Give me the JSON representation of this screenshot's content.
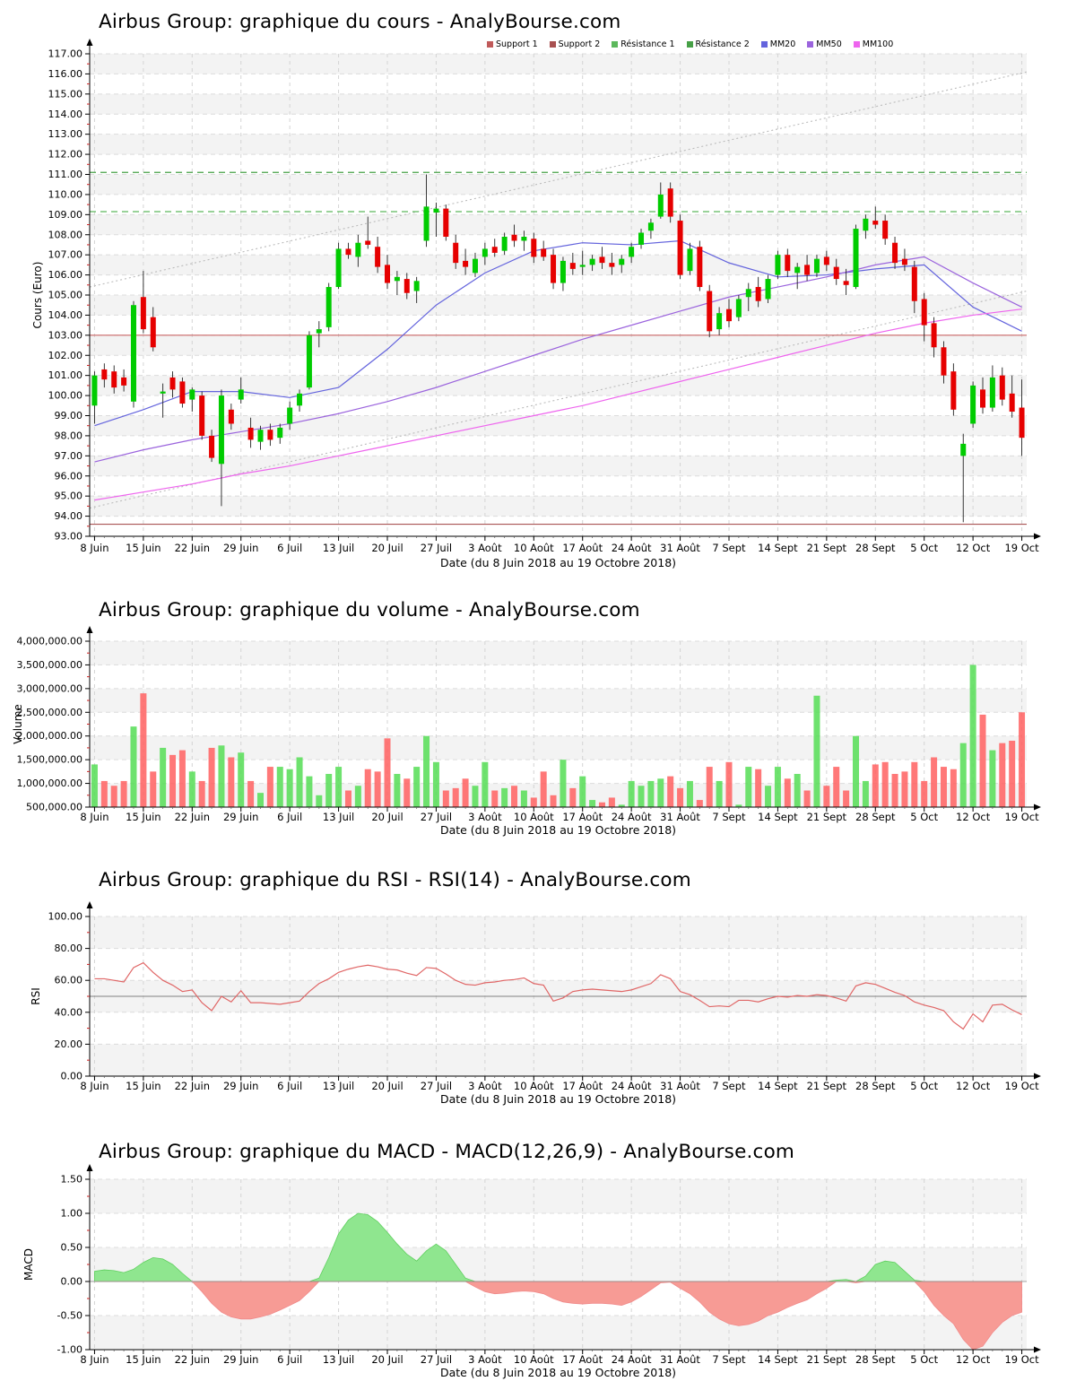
{
  "x_axis": {
    "tick_labels": [
      "8 Juin",
      "15 Juin",
      "22 Juin",
      "29 Juin",
      "6 Juil",
      "13 Juil",
      "20 Juil",
      "27 Juil",
      "3 Août",
      "10 Août",
      "17 Août",
      "24 Août",
      "31 Août",
      "7 Sept",
      "14 Sept",
      "21 Sept",
      "28 Sept",
      "5 Oct",
      "12 Oct",
      "19 Oct"
    ],
    "axis_label": "Date (du 8 Juin 2018 au 19 Octobre 2018)",
    "days_count": 96,
    "tick_step_days": 5
  },
  "chart_data": [
    {
      "type": "candlestick",
      "title": "Airbus Group: graphique du cours - AnalyBourse.com",
      "y_axis_label": "Cours (Euro)",
      "ylim": [
        93,
        117
      ],
      "y_major": 1,
      "y_minor": 0.5,
      "y_format": "fixed2",
      "up_color": "#00cc00",
      "down_color": "#e60000",
      "legend": [
        {
          "label": "Support 1",
          "color": "#c05a5a"
        },
        {
          "label": "Support 2",
          "color": "#a85050"
        },
        {
          "label": "Résistance 1",
          "color": "#5cb85c"
        },
        {
          "label": "Résistance 2",
          "color": "#46a046"
        },
        {
          "label": "MM20",
          "color": "#6464dd"
        },
        {
          "label": "MM50",
          "color": "#9b64dd"
        },
        {
          "label": "MM100",
          "color": "#ee64ee"
        }
      ],
      "support_lines": [
        {
          "label": "Support 1",
          "value": 103.0,
          "color": "#cc6666"
        },
        {
          "label": "Support 2",
          "value": 93.6,
          "color": "#aa5555"
        }
      ],
      "resistance_lines": [
        {
          "label": "Résistance 1",
          "value": 109.15,
          "color": "#5cb85c"
        },
        {
          "label": "Résistance 2",
          "value": 111.1,
          "color": "#46a046"
        }
      ],
      "trend_channel": [
        {
          "start": 94.4,
          "end": 105.2
        },
        {
          "start": 105.4,
          "end": 116.1
        }
      ],
      "moving_averages": [
        {
          "label": "MM20",
          "color": "#6464dd",
          "sample_step": 5,
          "values": [
            98.5,
            99.3,
            100.2,
            100.2,
            99.9,
            100.4,
            102.3,
            104.5,
            106.1,
            107.2,
            107.6,
            107.5,
            107.7,
            106.6,
            105.9,
            106.0,
            106.3,
            106.5,
            104.4,
            103.2
          ]
        },
        {
          "label": "MM50",
          "color": "#9b64dd",
          "sample_step": 5,
          "values": [
            96.7,
            97.3,
            97.8,
            98.2,
            98.6,
            99.1,
            99.7,
            100.4,
            101.2,
            102.0,
            102.8,
            103.5,
            104.2,
            104.9,
            105.4,
            105.9,
            106.5,
            106.9,
            105.6,
            104.4
          ]
        },
        {
          "label": "MM100",
          "color": "#ee64ee",
          "sample_step": 5,
          "values": [
            94.8,
            95.2,
            95.6,
            96.1,
            96.5,
            97.0,
            97.5,
            98.0,
            98.5,
            99.0,
            99.5,
            100.1,
            100.7,
            101.3,
            101.9,
            102.5,
            103.1,
            103.6,
            104.0,
            104.3
          ]
        }
      ],
      "candles_ohlc": [
        [
          99.5,
          101.2,
          98.6,
          101.0
        ],
        [
          101.3,
          101.6,
          100.4,
          100.8
        ],
        [
          101.2,
          101.5,
          100.1,
          100.4
        ],
        [
          100.9,
          101.3,
          100.2,
          100.5
        ],
        [
          99.7,
          104.7,
          99.4,
          104.5
        ],
        [
          104.9,
          106.2,
          103.1,
          103.3
        ],
        [
          103.9,
          104.4,
          102.2,
          102.4
        ],
        [
          100.1,
          100.6,
          98.9,
          100.2
        ],
        [
          100.9,
          101.2,
          99.9,
          100.3
        ],
        [
          100.7,
          100.9,
          99.4,
          99.6
        ],
        [
          99.8,
          100.4,
          99.2,
          100.3
        ],
        [
          100.0,
          100.2,
          97.8,
          98.0
        ],
        [
          98.0,
          98.3,
          96.7,
          96.9
        ],
        [
          96.6,
          100.3,
          94.5,
          100.0
        ],
        [
          99.3,
          99.6,
          98.3,
          98.6
        ],
        [
          99.8,
          100.9,
          99.6,
          100.3
        ],
        [
          98.4,
          98.9,
          97.4,
          97.8
        ],
        [
          97.7,
          98.5,
          97.3,
          98.3
        ],
        [
          98.3,
          98.6,
          97.5,
          97.8
        ],
        [
          97.9,
          98.6,
          97.6,
          98.4
        ],
        [
          98.6,
          99.7,
          98.3,
          99.4
        ],
        [
          99.5,
          100.3,
          99.2,
          100.1
        ],
        [
          100.4,
          103.2,
          100.3,
          103.0
        ],
        [
          103.1,
          103.7,
          102.4,
          103.3
        ],
        [
          103.4,
          105.6,
          103.2,
          105.4
        ],
        [
          105.4,
          107.6,
          105.3,
          107.3
        ],
        [
          107.3,
          107.6,
          106.8,
          107.0
        ],
        [
          106.9,
          108.0,
          106.4,
          107.6
        ],
        [
          107.7,
          108.9,
          107.3,
          107.5
        ],
        [
          107.4,
          107.9,
          106.1,
          106.4
        ],
        [
          106.5,
          107.0,
          105.3,
          105.6
        ],
        [
          105.7,
          106.2,
          105.0,
          105.9
        ],
        [
          105.8,
          106.1,
          104.8,
          105.1
        ],
        [
          105.2,
          105.9,
          104.6,
          105.7
        ],
        [
          107.7,
          111.0,
          107.4,
          109.4
        ],
        [
          109.1,
          109.6,
          107.9,
          109.3
        ],
        [
          109.3,
          109.5,
          107.7,
          107.9
        ],
        [
          107.6,
          108.0,
          106.3,
          106.6
        ],
        [
          106.7,
          107.3,
          106.0,
          106.4
        ],
        [
          106.1,
          107.1,
          105.9,
          106.8
        ],
        [
          106.9,
          107.6,
          106.5,
          107.3
        ],
        [
          107.4,
          107.8,
          106.9,
          107.1
        ],
        [
          107.2,
          108.1,
          107.0,
          107.9
        ],
        [
          108.0,
          108.5,
          107.4,
          107.7
        ],
        [
          107.7,
          108.2,
          107.2,
          107.9
        ],
        [
          107.8,
          108.1,
          106.6,
          106.9
        ],
        [
          107.3,
          107.7,
          106.7,
          106.9
        ],
        [
          107.0,
          107.3,
          105.3,
          105.6
        ],
        [
          105.6,
          106.9,
          105.2,
          106.7
        ],
        [
          106.6,
          107.1,
          106.0,
          106.3
        ],
        [
          106.4,
          107.2,
          106.0,
          106.5
        ],
        [
          106.5,
          107.0,
          106.2,
          106.8
        ],
        [
          106.9,
          107.4,
          106.3,
          106.6
        ],
        [
          106.6,
          107.1,
          106.0,
          106.4
        ],
        [
          106.5,
          107.0,
          106.1,
          106.8
        ],
        [
          106.9,
          107.6,
          106.6,
          107.4
        ],
        [
          107.5,
          108.3,
          107.3,
          108.1
        ],
        [
          108.2,
          108.8,
          107.8,
          108.6
        ],
        [
          108.9,
          110.6,
          108.8,
          110.0
        ],
        [
          110.3,
          110.6,
          108.6,
          108.9
        ],
        [
          108.7,
          109.0,
          105.8,
          106.0
        ],
        [
          106.2,
          107.6,
          106.0,
          107.3
        ],
        [
          107.4,
          107.7,
          105.2,
          105.4
        ],
        [
          105.2,
          105.5,
          102.9,
          103.2
        ],
        [
          103.3,
          104.4,
          103.0,
          104.1
        ],
        [
          104.3,
          104.8,
          103.4,
          103.7
        ],
        [
          103.9,
          105.0,
          103.7,
          104.8
        ],
        [
          104.9,
          105.6,
          104.2,
          105.3
        ],
        [
          105.4,
          105.9,
          104.4,
          104.7
        ],
        [
          104.8,
          106.0,
          104.6,
          105.8
        ],
        [
          106.0,
          107.2,
          105.8,
          107.0
        ],
        [
          107.0,
          107.3,
          105.9,
          106.2
        ],
        [
          106.1,
          106.6,
          105.3,
          106.4
        ],
        [
          106.5,
          107.0,
          105.7,
          106.0
        ],
        [
          106.1,
          107.0,
          105.9,
          106.8
        ],
        [
          106.9,
          107.2,
          106.2,
          106.5
        ],
        [
          106.4,
          106.8,
          105.5,
          105.8
        ],
        [
          105.7,
          106.3,
          105.0,
          105.5
        ],
        [
          105.4,
          108.5,
          105.3,
          108.3
        ],
        [
          108.2,
          109.0,
          107.8,
          108.8
        ],
        [
          108.7,
          109.4,
          108.3,
          108.5
        ],
        [
          108.7,
          109.0,
          107.5,
          107.8
        ],
        [
          107.6,
          107.9,
          106.3,
          106.6
        ],
        [
          106.8,
          107.3,
          106.2,
          106.5
        ],
        [
          106.4,
          106.7,
          104.1,
          104.7
        ],
        [
          104.8,
          105.1,
          102.7,
          103.5
        ],
        [
          103.6,
          103.9,
          101.9,
          102.4
        ],
        [
          102.4,
          102.7,
          100.6,
          101.0
        ],
        [
          101.2,
          101.6,
          99.0,
          99.3
        ],
        [
          97.0,
          98.1,
          93.7,
          97.6
        ],
        [
          98.6,
          100.7,
          98.4,
          100.5
        ],
        [
          100.3,
          100.9,
          99.1,
          99.4
        ],
        [
          99.4,
          101.5,
          99.2,
          100.9
        ],
        [
          101.0,
          101.4,
          99.5,
          99.8
        ],
        [
          100.1,
          101.0,
          98.9,
          99.2
        ],
        [
          99.4,
          100.8,
          97.0,
          97.9
        ]
      ]
    },
    {
      "type": "bar",
      "title": "Airbus Group: graphique du volume - AnalyBourse.com",
      "y_axis_label": "Volume",
      "ylim": [
        500000,
        4000000
      ],
      "y_major": 500000,
      "y_minor": 250000,
      "y_format": "thousands",
      "up_color": "#55dd55",
      "down_color": "#ff6060",
      "values": [
        1400000,
        1050000,
        950000,
        1050000,
        2200000,
        2900000,
        1250000,
        1750000,
        1600000,
        1700000,
        1250000,
        1050000,
        1750000,
        1800000,
        1550000,
        1650000,
        1050000,
        800000,
        1350000,
        1350000,
        1300000,
        1550000,
        1150000,
        750000,
        1200000,
        1350000,
        850000,
        950000,
        1300000,
        1250000,
        1950000,
        1200000,
        1100000,
        1350000,
        2000000,
        1450000,
        850000,
        900000,
        1100000,
        950000,
        1450000,
        850000,
        900000,
        950000,
        850000,
        700000,
        1250000,
        750000,
        1500000,
        900000,
        1150000,
        650000,
        600000,
        700000,
        550000,
        1050000,
        950000,
        1050000,
        1100000,
        1150000,
        900000,
        1050000,
        650000,
        1350000,
        1050000,
        1450000,
        550000,
        1350000,
        1300000,
        950000,
        1350000,
        1100000,
        1200000,
        850000,
        2850000,
        950000,
        1350000,
        850000,
        2000000,
        1050000,
        1400000,
        1450000,
        1200000,
        1250000,
        1450000,
        1050000,
        1550000,
        1350000,
        1300000,
        1850000,
        3500000,
        2450000,
        1700000,
        1850000,
        1900000,
        2500000
      ]
    },
    {
      "type": "line",
      "title": "Airbus Group: graphique du RSI - RSI(14) - AnalyBourse.com",
      "y_axis_label": "RSI",
      "ylim": [
        0,
        100
      ],
      "y_major": 20,
      "y_minor": 10,
      "y_format": "fixed2",
      "midline": 50,
      "line_color": "#e06666",
      "values": [
        61,
        61,
        60,
        59,
        68,
        71,
        65,
        60,
        57,
        53,
        54,
        46,
        41,
        50,
        46.5,
        53.5,
        46,
        46,
        45.5,
        45,
        46,
        47,
        53,
        58,
        61,
        65,
        67,
        68.5,
        69.5,
        68.5,
        67,
        66.5,
        64.5,
        63,
        68,
        67.5,
        64,
        60,
        57.5,
        57,
        58.5,
        59,
        60,
        60.5,
        61.5,
        58,
        57,
        47,
        49,
        53,
        54,
        54.5,
        54,
        53.5,
        53,
        54,
        56,
        58,
        63.5,
        61,
        53,
        51,
        47.5,
        43.5,
        44,
        43.5,
        47.5,
        47.5,
        46.5,
        48.5,
        50,
        49.5,
        50.5,
        50,
        51,
        50.5,
        49,
        47,
        56.5,
        58.5,
        57.5,
        55,
        52.5,
        50.5,
        46.5,
        44.5,
        43,
        41,
        34,
        29.5,
        39,
        34,
        44.5,
        45,
        41.5,
        38.5
      ]
    },
    {
      "type": "area",
      "title": "Airbus Group: graphique du MACD - MACD(12,26,9) - AnalyBourse.com",
      "y_axis_label": "MACD",
      "ylim": [
        -1,
        1.5
      ],
      "y_major": 0.5,
      "y_minor": 0.25,
      "y_format": "fixed2",
      "positive_color": "#8fe68f",
      "positive_edge": "#5ecf5e",
      "negative_color": "#f79b95",
      "negative_edge": "#f08a8a",
      "values": [
        0.15,
        0.17,
        0.16,
        0.13,
        0.18,
        0.28,
        0.35,
        0.33,
        0.25,
        0.12,
        0.0,
        -0.15,
        -0.32,
        -0.45,
        -0.52,
        -0.55,
        -0.55,
        -0.52,
        -0.48,
        -0.42,
        -0.35,
        -0.28,
        -0.15,
        0.05,
        0.35,
        0.7,
        0.9,
        1.0,
        0.98,
        0.88,
        0.72,
        0.55,
        0.4,
        0.3,
        0.45,
        0.55,
        0.45,
        0.25,
        0.05,
        -0.08,
        -0.15,
        -0.18,
        -0.17,
        -0.15,
        -0.14,
        -0.15,
        -0.18,
        -0.25,
        -0.3,
        -0.32,
        -0.33,
        -0.32,
        -0.32,
        -0.33,
        -0.35,
        -0.3,
        -0.22,
        -0.12,
        -0.02,
        -0.01,
        -0.1,
        -0.18,
        -0.3,
        -0.45,
        -0.55,
        -0.62,
        -0.65,
        -0.63,
        -0.58,
        -0.5,
        -0.45,
        -0.38,
        -0.32,
        -0.27,
        -0.18,
        -0.1,
        0.02,
        0.03,
        -0.02,
        0.08,
        0.25,
        0.3,
        0.28,
        0.15,
        0.02,
        -0.15,
        -0.35,
        -0.5,
        -0.62,
        -0.85,
        -1.0,
        -0.95,
        -0.75,
        -0.6,
        -0.5,
        -0.45
      ]
    }
  ]
}
